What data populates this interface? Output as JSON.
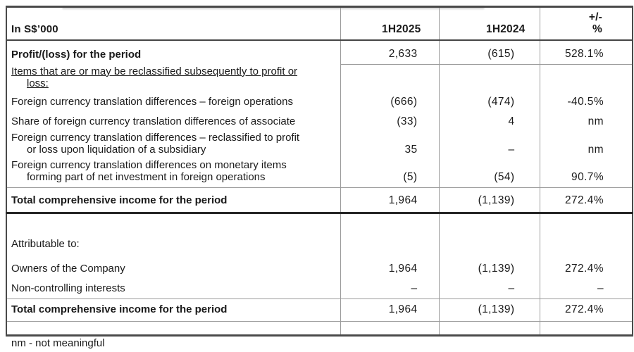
{
  "colors": {
    "text": "#1a1a1a",
    "grid_line": "#9c9c9c",
    "outer_border": "#4a4a4a",
    "heavy_rule": "#262626"
  },
  "table": {
    "header": {
      "unit_label": "In S$’000",
      "period_1": "1H2025",
      "period_2": "1H2024",
      "change_line1": "+/-",
      "change_line2": "%"
    },
    "rows": [
      {
        "label": "Profit/(loss) for the period",
        "v2025": "2,633",
        "v2024": "(615)",
        "change": "528.1%"
      },
      {
        "line1": "Items that are or may be reclassified subsequently to profit or",
        "line2": "loss:"
      },
      {
        "label": "Foreign currency translation differences – foreign operations",
        "v2025": "(666)",
        "v2024": "(474)",
        "change": "-40.5%"
      },
      {
        "label": "Share of foreign currency translation differences of associate",
        "v2025": "(33)",
        "v2024": "4",
        "change": "nm"
      },
      {
        "line1": "Foreign currency translation differences – reclassified to profit",
        "line2": "or loss upon liquidation of a subsidiary",
        "v2025": "35",
        "v2024": "–",
        "change": "nm"
      },
      {
        "line1": "Foreign currency translation differences on monetary items",
        "line2": "forming part of net investment in foreign operations",
        "v2025": "(5)",
        "v2024": "(54)",
        "change": "90.7%"
      },
      {
        "label": "Total comprehensive income for the period",
        "v2025": "1,964",
        "v2024": "(1,139)",
        "change": "272.4%"
      },
      {
        "label": "Attributable to:"
      },
      {
        "label": "Owners of the Company",
        "v2025": "1,964",
        "v2024": "(1,139)",
        "change": "272.4%"
      },
      {
        "label": "Non-controlling interests",
        "v2025": "–",
        "v2024": "–",
        "change": "–"
      },
      {
        "label": "Total comprehensive income for the period",
        "v2025": "1,964",
        "v2024": "(1,139)",
        "change": "272.4%"
      }
    ],
    "footnote": "nm - not meaningful"
  }
}
